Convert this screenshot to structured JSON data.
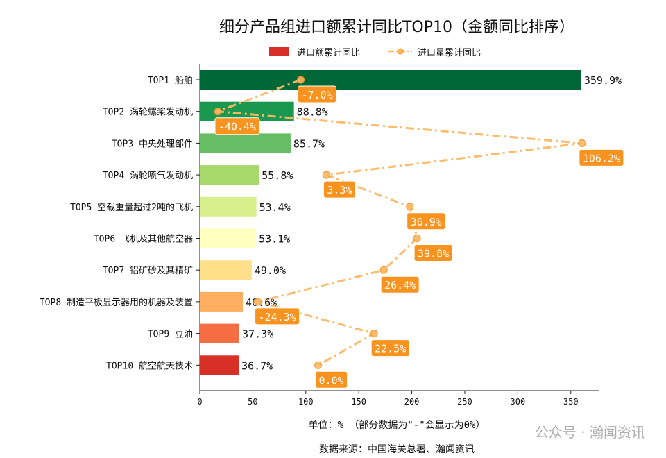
{
  "chart_data": {
    "type": "bar",
    "title": "细分产品组进口额累计同比TOP10（金额同比排序）",
    "categories": [
      "TOP1 船舶",
      "TOP2 涡轮螺桨发动机",
      "TOP3 中央处理部件",
      "TOP4 涡轮喷气发动机",
      "TOP5 空载重量超过2吨的飞机",
      "TOP6 飞机及其他航空器",
      "TOP7 铝矿砂及其精矿",
      "TOP8 制造平板显示器用的机器及装置",
      "TOP9 豆油",
      "TOP10 航空航天技术"
    ],
    "series": [
      {
        "name": "进口额累计同比",
        "type": "bar",
        "values": [
          359.9,
          88.8,
          85.7,
          55.8,
          53.4,
          53.1,
          49.0,
          40.6,
          37.3,
          36.7
        ],
        "labels": [
          "359.9%",
          "88.8%",
          "85.7%",
          "55.8%",
          "53.4%",
          "53.1%",
          "49.0%",
          "40.6%",
          "37.3%",
          "36.7%"
        ],
        "colors": [
          "#006837",
          "#1a9850",
          "#66bd63",
          "#a6d96a",
          "#d9ef8b",
          "#ffffbf",
          "#fee08b",
          "#fdae61",
          "#f46d43",
          "#d73027"
        ]
      },
      {
        "name": "进口量累计同比",
        "type": "line",
        "values": [
          -7.0,
          -40.4,
          106.2,
          3.3,
          36.9,
          39.8,
          26.4,
          -24.3,
          22.5,
          0.0
        ],
        "labels": [
          "-7.0%",
          "-40.4%",
          "106.2%",
          "3.3%",
          "36.9%",
          "39.8%",
          "26.4%",
          "-24.3%",
          "22.5%",
          "0.0%"
        ],
        "color": "#fdb863",
        "label_color": "#f7931e"
      }
    ],
    "xlim": [
      0,
      377
    ],
    "xticks": [
      "0",
      "50",
      "100",
      "150",
      "200",
      "250",
      "300",
      "350"
    ],
    "xticks_values": [
      0,
      50,
      100,
      150,
      200,
      250,
      300,
      350
    ],
    "legend": "top-center",
    "grid": false
  },
  "notes": {
    "unit": "单位：%  （部分数据为\"-\"会显示为0%）",
    "source": "数据来源：中国海关总署、瀚闻资讯"
  },
  "watermark": "公众号 · 瀚闻资讯"
}
